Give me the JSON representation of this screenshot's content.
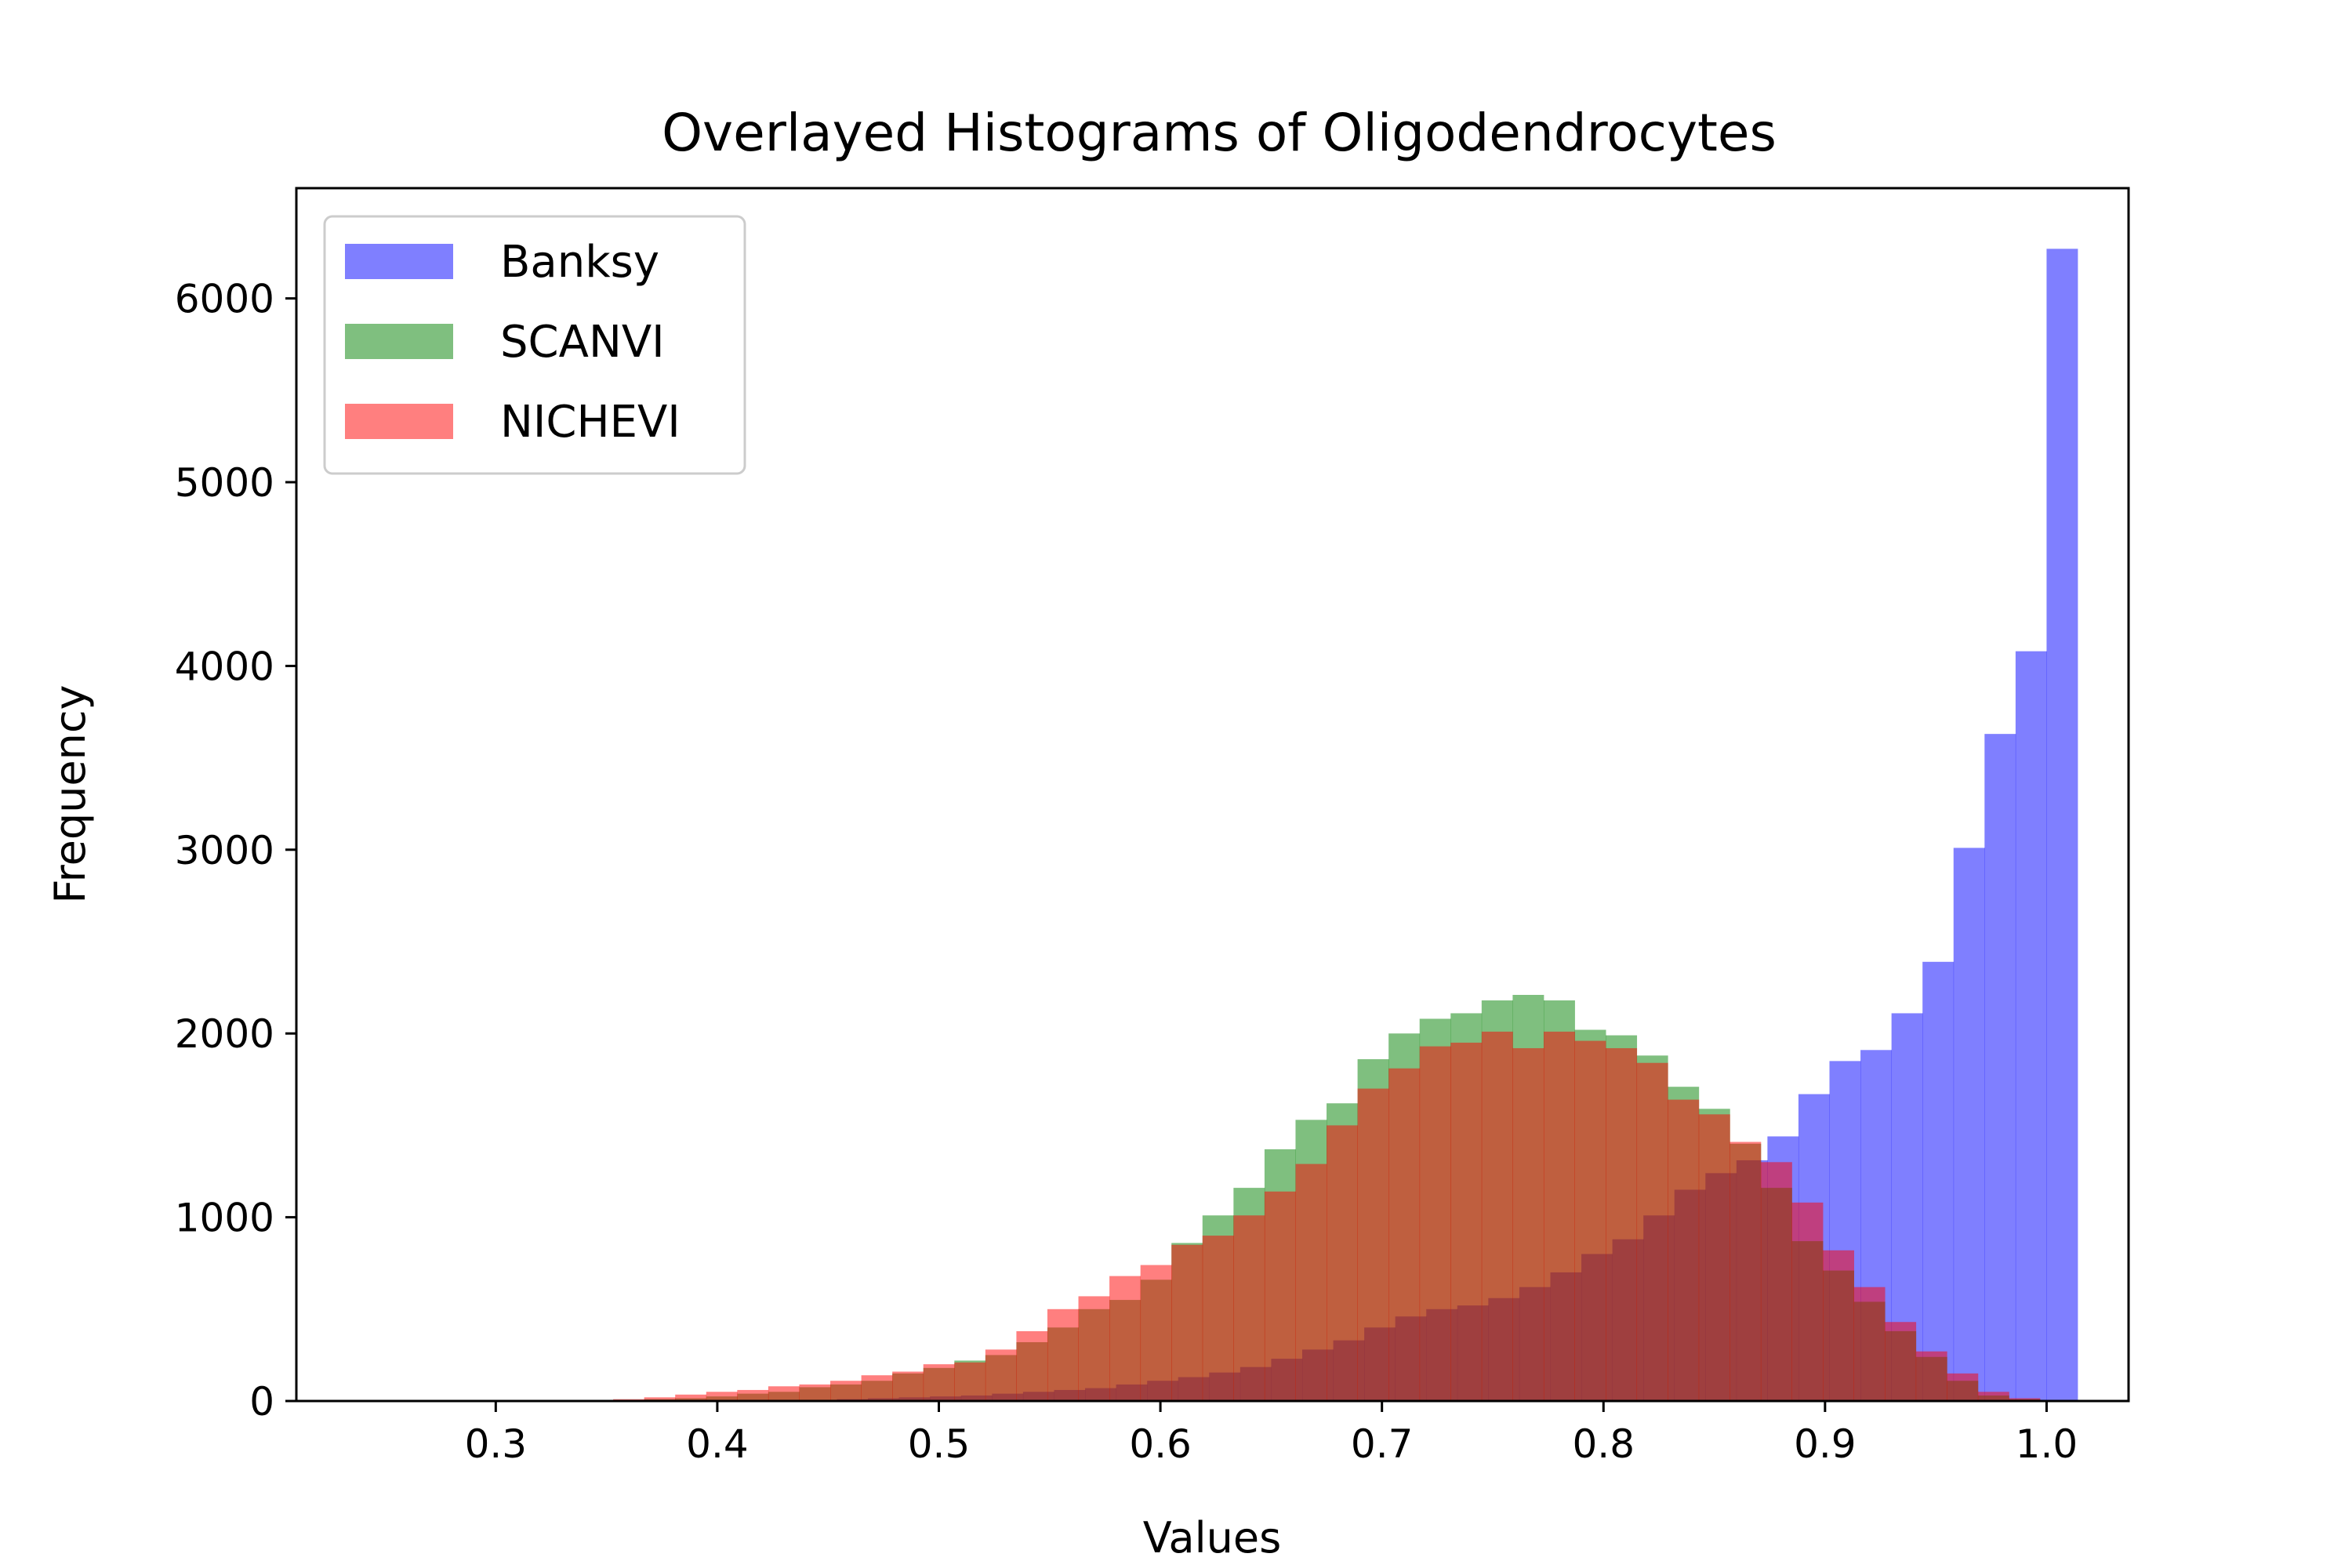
{
  "chart_data": {
    "type": "bar",
    "title": "Overlayed Histograms of Oligodendrocytes",
    "xlabel": "Values",
    "ylabel": "Frequency",
    "xlim": [
      0.21,
      1.037
    ],
    "ylim": [
      0,
      6600
    ],
    "xticks": [
      0.3,
      0.4,
      0.5,
      0.6,
      0.7,
      0.8,
      0.9,
      1.0
    ],
    "xtick_labels": [
      "0.3",
      "0.4",
      "0.5",
      "0.6",
      "0.7",
      "0.8",
      "0.9",
      "1.0"
    ],
    "yticks": [
      0,
      1000,
      2000,
      3000,
      4000,
      5000,
      6000
    ],
    "ytick_labels": [
      "0",
      "1000",
      "2000",
      "3000",
      "4000",
      "5000",
      "6000"
    ],
    "legend_position": "top-left",
    "grid": false,
    "series": [
      {
        "name": "Banksy",
        "color": "#0000ff",
        "opacity": 0.5,
        "bin_start": 0.3,
        "bin_width": 0.014,
        "values": [
          0,
          0,
          0,
          0,
          0,
          0,
          0,
          0,
          0,
          0,
          5,
          10,
          15,
          20,
          25,
          30,
          40,
          50,
          60,
          70,
          90,
          110,
          130,
          155,
          185,
          230,
          280,
          330,
          400,
          460,
          500,
          520,
          560,
          620,
          700,
          800,
          880,
          1010,
          1150,
          1240,
          1310,
          1440,
          1670,
          1850,
          1910,
          2110,
          2390,
          3010,
          3630,
          4080,
          6270
        ]
      },
      {
        "name": "SCANVI",
        "color": "#008000",
        "opacity": 0.5,
        "bin_start": 0.227,
        "bin_width": 0.014,
        "values": [
          0,
          0,
          0,
          0,
          0,
          0,
          0,
          0,
          0,
          0,
          10,
          15,
          25,
          40,
          50,
          75,
          90,
          110,
          150,
          180,
          220,
          250,
          320,
          400,
          500,
          550,
          660,
          860,
          1010,
          1160,
          1370,
          1530,
          1620,
          1860,
          2000,
          2080,
          2110,
          2180,
          2210,
          2180,
          2020,
          1990,
          1880,
          1710,
          1590,
          1400,
          1160,
          870,
          710,
          540,
          380,
          240,
          110,
          30,
          10
        ]
      },
      {
        "name": "NICHEVI",
        "color": "#ff0000",
        "opacity": 0.5,
        "bin_start": 0.227,
        "bin_width": 0.014,
        "values": [
          0,
          0,
          0,
          0,
          0,
          0,
          0,
          0,
          0,
          10,
          20,
          35,
          50,
          60,
          80,
          90,
          110,
          140,
          160,
          200,
          210,
          280,
          380,
          500,
          570,
          680,
          740,
          850,
          900,
          1010,
          1140,
          1290,
          1500,
          1700,
          1810,
          1930,
          1950,
          2010,
          1920,
          2010,
          1960,
          1920,
          1840,
          1640,
          1560,
          1410,
          1300,
          1080,
          820,
          620,
          430,
          270,
          150,
          50,
          15
        ]
      }
    ]
  }
}
